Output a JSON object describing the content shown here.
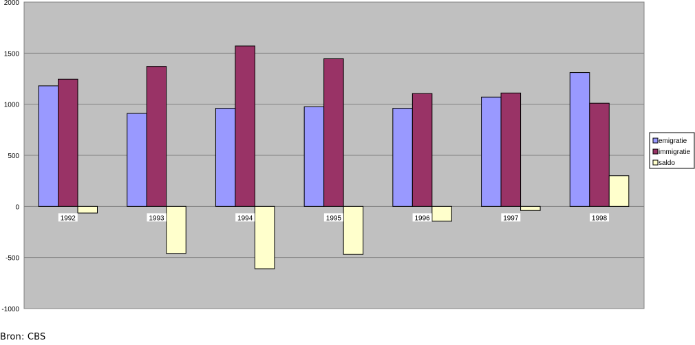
{
  "chart_data": {
    "type": "bar",
    "categories": [
      "1992",
      "1993",
      "1994",
      "1995",
      "1996",
      "1997",
      "1998"
    ],
    "series": [
      {
        "name": "emigratie",
        "color": "#9999ff",
        "values": [
          1180,
          910,
          960,
          975,
          960,
          1070,
          1310
        ]
      },
      {
        "name": "immigratie",
        "color": "#993366",
        "values": [
          1245,
          1370,
          1570,
          1445,
          1105,
          1110,
          1010
        ]
      },
      {
        "name": "saldo",
        "color": "#ffffcc",
        "values": [
          -65,
          -460,
          -610,
          -470,
          -145,
          -40,
          300
        ]
      }
    ],
    "ylim": [
      -1000,
      2000
    ],
    "yticks": [
      -1000,
      -500,
      0,
      500,
      1000,
      1500,
      2000
    ],
    "grid": true,
    "plot_background": "#c0c0c0",
    "legend_position": "right",
    "title": "",
    "xlabel": "",
    "ylabel": ""
  },
  "source": "Bron: CBS"
}
